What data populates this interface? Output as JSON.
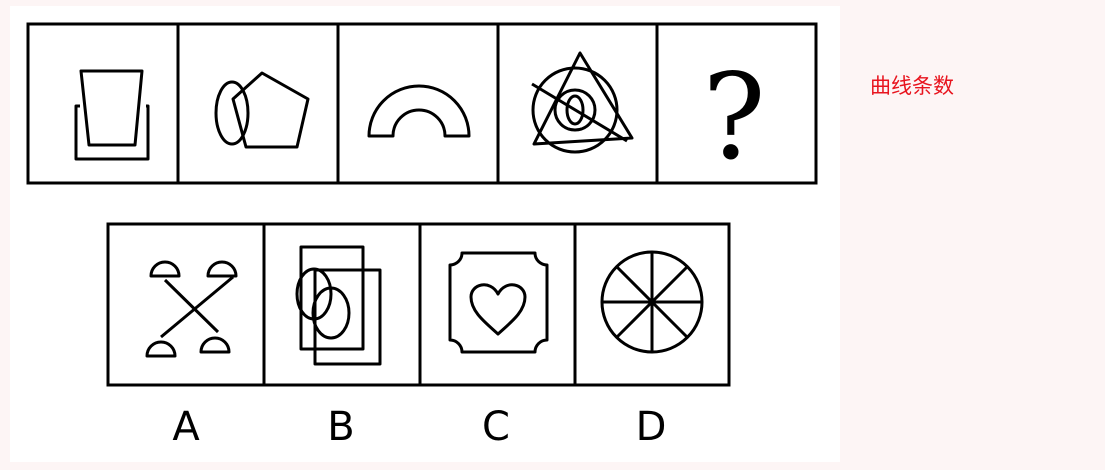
{
  "annotation": "曲线条数",
  "question_row": {
    "cells": [
      "trapezoid-over-rectangle",
      "ellipse-and-pentagon",
      "arch",
      "circles-triangle-with-line",
      "question-mark"
    ],
    "question_mark": "?"
  },
  "options": [
    {
      "label": "A",
      "figure": "crossed-sticks-with-semicircles"
    },
    {
      "label": "B",
      "figure": "rectangles-and-ellipses"
    },
    {
      "label": "C",
      "figure": "heart-in-notched-square"
    },
    {
      "label": "D",
      "figure": "circle-with-eight-spokes"
    }
  ],
  "colors": {
    "annotation": "#e8141e",
    "line": "#000000",
    "page": "#fdf5f5",
    "panel": "#ffffff"
  }
}
